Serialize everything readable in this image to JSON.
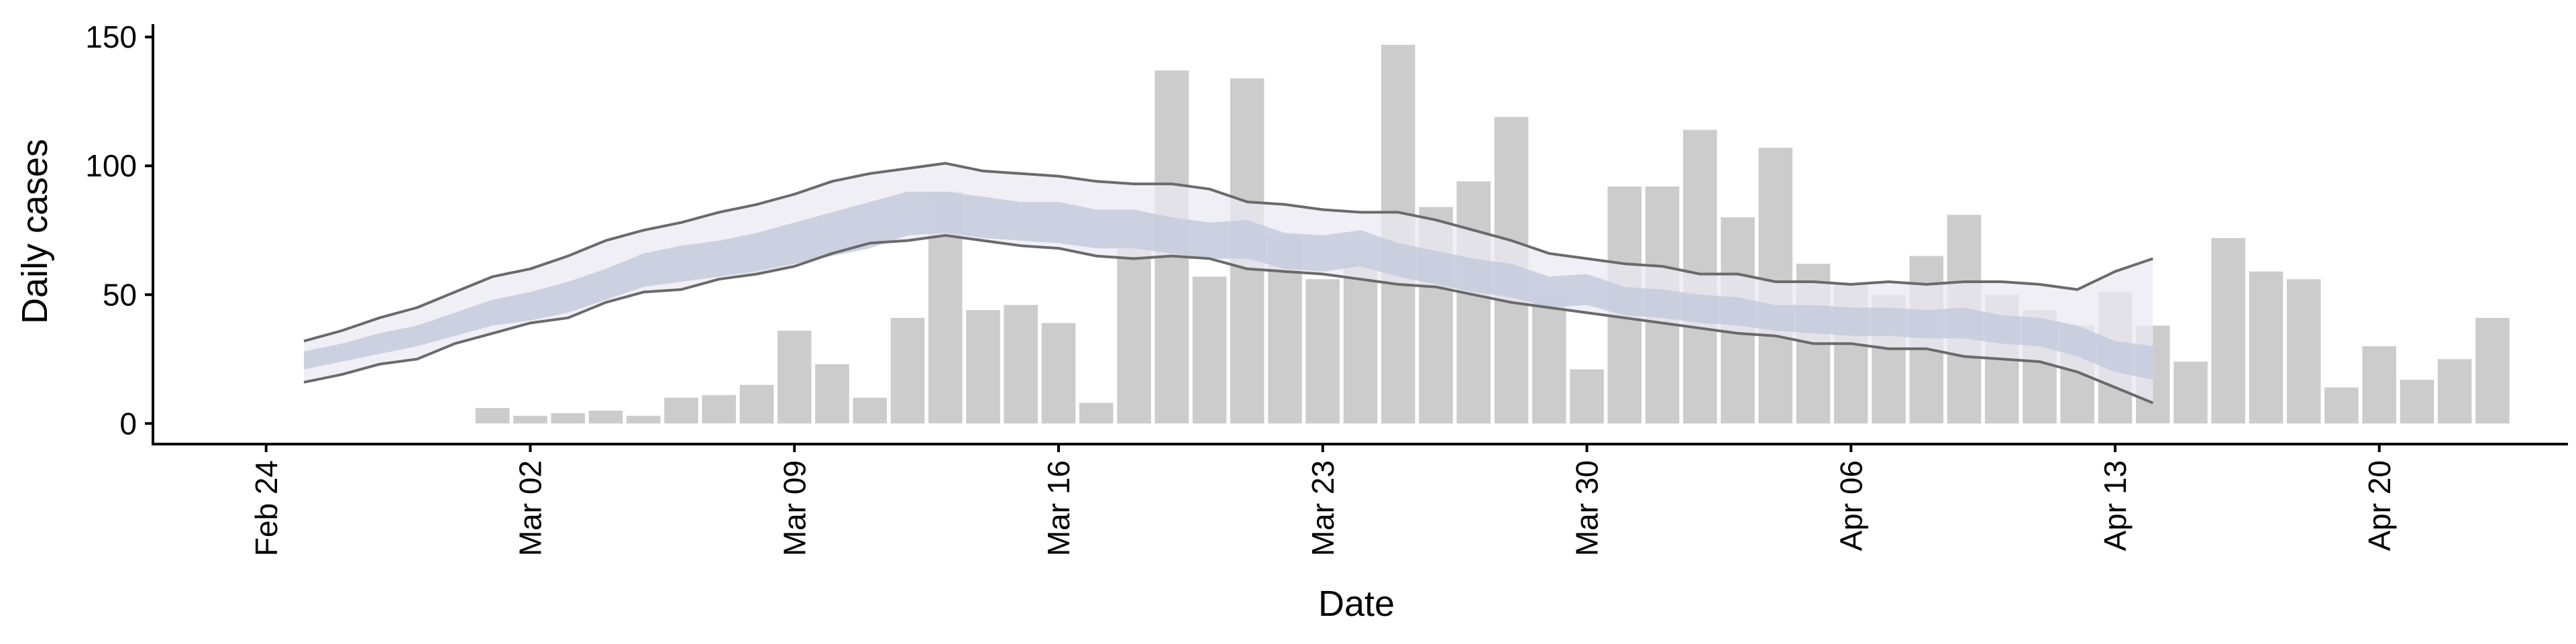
{
  "chart_data": {
    "type": "bar",
    "title": "",
    "xlabel": "Date",
    "ylabel": "Daily cases",
    "ylim": [
      -8,
      155
    ],
    "xlim": [
      "2020-02-21",
      "2020-04-25"
    ],
    "grid": false,
    "y_ticks": [
      0,
      50,
      100,
      150
    ],
    "x_ticks": [
      {
        "date": "2020-02-24",
        "label": "Feb 24"
      },
      {
        "date": "2020-03-02",
        "label": "Mar 02"
      },
      {
        "date": "2020-03-09",
        "label": "Mar 09"
      },
      {
        "date": "2020-03-16",
        "label": "Mar 16"
      },
      {
        "date": "2020-03-23",
        "label": "Mar 23"
      },
      {
        "date": "2020-03-30",
        "label": "Mar 30"
      },
      {
        "date": "2020-04-06",
        "label": "Apr 06"
      },
      {
        "date": "2020-04-13",
        "label": "Apr 13"
      },
      {
        "date": "2020-04-20",
        "label": "Apr 20"
      }
    ],
    "colors": {
      "bars": "#cccccc",
      "band_outer": "#e9eaf1",
      "band_inner": "#c5cbdd",
      "bound_lines": "#6a6a6a"
    },
    "bars": {
      "dates": [
        "2020-03-01",
        "2020-03-02",
        "2020-03-03",
        "2020-03-04",
        "2020-03-05",
        "2020-03-06",
        "2020-03-07",
        "2020-03-08",
        "2020-03-09",
        "2020-03-10",
        "2020-03-11",
        "2020-03-12",
        "2020-03-13",
        "2020-03-14",
        "2020-03-15",
        "2020-03-16",
        "2020-03-17",
        "2020-03-18",
        "2020-03-19",
        "2020-03-20",
        "2020-03-21",
        "2020-03-22",
        "2020-03-23",
        "2020-03-24",
        "2020-03-25",
        "2020-03-26",
        "2020-03-27",
        "2020-03-28",
        "2020-03-29",
        "2020-03-30",
        "2020-03-31",
        "2020-04-01",
        "2020-04-02",
        "2020-04-03",
        "2020-04-04",
        "2020-04-05",
        "2020-04-06",
        "2020-04-07",
        "2020-04-08",
        "2020-04-09",
        "2020-04-10",
        "2020-04-11",
        "2020-04-12",
        "2020-04-13",
        "2020-04-14",
        "2020-04-15",
        "2020-04-16",
        "2020-04-17",
        "2020-04-18",
        "2020-04-19",
        "2020-04-20",
        "2020-04-21",
        "2020-04-22",
        "2020-04-23"
      ],
      "values": [
        6,
        3,
        4,
        5,
        3,
        10,
        11,
        15,
        36,
        23,
        10,
        41,
        90,
        44,
        46,
        39,
        8,
        68,
        137,
        57,
        134,
        73,
        56,
        62,
        147,
        84,
        94,
        119,
        50,
        21,
        92,
        92,
        114,
        80,
        107,
        62,
        54,
        50,
        65,
        81,
        50,
        44,
        38,
        51,
        38,
        24,
        72,
        59,
        56,
        14,
        30,
        17,
        25,
        41
      ]
    },
    "series": [
      {
        "role": "upper_bound",
        "dates": [
          "2020-02-25",
          "2020-02-26",
          "2020-02-27",
          "2020-02-28",
          "2020-02-29",
          "2020-03-01",
          "2020-03-02",
          "2020-03-03",
          "2020-03-04",
          "2020-03-05",
          "2020-03-06",
          "2020-03-07",
          "2020-03-08",
          "2020-03-09",
          "2020-03-10",
          "2020-03-11",
          "2020-03-12",
          "2020-03-13",
          "2020-03-14",
          "2020-03-15",
          "2020-03-16",
          "2020-03-17",
          "2020-03-18",
          "2020-03-19",
          "2020-03-20",
          "2020-03-21",
          "2020-03-22",
          "2020-03-23",
          "2020-03-24",
          "2020-03-25",
          "2020-03-26",
          "2020-03-27",
          "2020-03-28",
          "2020-03-29",
          "2020-03-30",
          "2020-03-31",
          "2020-04-01",
          "2020-04-02",
          "2020-04-03",
          "2020-04-04",
          "2020-04-05",
          "2020-04-06",
          "2020-04-07",
          "2020-04-08",
          "2020-04-09",
          "2020-04-10",
          "2020-04-11",
          "2020-04-12",
          "2020-04-13",
          "2020-04-14"
        ],
        "values": [
          32,
          36,
          41,
          45,
          51,
          57,
          60,
          65,
          71,
          75,
          78,
          82,
          85,
          89,
          94,
          97,
          99,
          101,
          98,
          97,
          96,
          94,
          93,
          93,
          91,
          86,
          85,
          83,
          82,
          82,
          79,
          75,
          71,
          66,
          64,
          62,
          61,
          58,
          58,
          55,
          55,
          54,
          55,
          54,
          55,
          55,
          54,
          52,
          59,
          64
        ]
      },
      {
        "role": "lower_bound",
        "dates": [
          "2020-02-25",
          "2020-02-26",
          "2020-02-27",
          "2020-02-28",
          "2020-02-29",
          "2020-03-01",
          "2020-03-02",
          "2020-03-03",
          "2020-03-04",
          "2020-03-05",
          "2020-03-06",
          "2020-03-07",
          "2020-03-08",
          "2020-03-09",
          "2020-03-10",
          "2020-03-11",
          "2020-03-12",
          "2020-03-13",
          "2020-03-14",
          "2020-03-15",
          "2020-03-16",
          "2020-03-17",
          "2020-03-18",
          "2020-03-19",
          "2020-03-20",
          "2020-03-21",
          "2020-03-22",
          "2020-03-23",
          "2020-03-24",
          "2020-03-25",
          "2020-03-26",
          "2020-03-27",
          "2020-03-28",
          "2020-03-29",
          "2020-03-30",
          "2020-03-31",
          "2020-04-01",
          "2020-04-02",
          "2020-04-03",
          "2020-04-04",
          "2020-04-05",
          "2020-04-06",
          "2020-04-07",
          "2020-04-08",
          "2020-04-09",
          "2020-04-10",
          "2020-04-11",
          "2020-04-12",
          "2020-04-13",
          "2020-04-14"
        ],
        "values": [
          16,
          19,
          23,
          25,
          31,
          35,
          39,
          41,
          47,
          51,
          52,
          56,
          58,
          61,
          66,
          70,
          71,
          73,
          71,
          69,
          68,
          65,
          64,
          65,
          64,
          60,
          59,
          58,
          56,
          54,
          53,
          50,
          47,
          45,
          43,
          41,
          39,
          37,
          35,
          34,
          31,
          31,
          29,
          29,
          26,
          25,
          24,
          20,
          14,
          8
        ]
      },
      {
        "role": "median_band",
        "dates": [
          "2020-02-25",
          "2020-02-26",
          "2020-02-27",
          "2020-02-28",
          "2020-02-29",
          "2020-03-01",
          "2020-03-02",
          "2020-03-03",
          "2020-03-04",
          "2020-03-05",
          "2020-03-06",
          "2020-03-07",
          "2020-03-08",
          "2020-03-09",
          "2020-03-10",
          "2020-03-11",
          "2020-03-12",
          "2020-03-13",
          "2020-03-14",
          "2020-03-15",
          "2020-03-16",
          "2020-03-17",
          "2020-03-18",
          "2020-03-19",
          "2020-03-20",
          "2020-03-21",
          "2020-03-22",
          "2020-03-23",
          "2020-03-24",
          "2020-03-25",
          "2020-03-26",
          "2020-03-27",
          "2020-03-28",
          "2020-03-29",
          "2020-03-30",
          "2020-03-31",
          "2020-04-01",
          "2020-04-02",
          "2020-04-03",
          "2020-04-04",
          "2020-04-05",
          "2020-04-06",
          "2020-04-07",
          "2020-04-08",
          "2020-04-09",
          "2020-04-10",
          "2020-04-11",
          "2020-04-12",
          "2020-04-13",
          "2020-04-14"
        ],
        "upper": [
          28,
          31,
          35,
          38,
          43,
          48,
          51,
          55,
          60,
          66,
          69,
          71,
          74,
          78,
          82,
          86,
          90,
          90,
          88,
          86,
          86,
          83,
          83,
          80,
          78,
          79,
          74,
          73,
          75,
          70,
          67,
          64,
          62,
          57,
          58,
          53,
          52,
          50,
          49,
          46,
          46,
          45,
          45,
          44,
          45,
          42,
          41,
          38,
          32,
          30
        ],
        "lower": [
          21,
          24,
          27,
          30,
          34,
          38,
          40,
          43,
          48,
          53,
          55,
          57,
          59,
          62,
          65,
          68,
          73,
          74,
          72,
          71,
          70,
          68,
          68,
          66,
          64,
          64,
          60,
          59,
          61,
          57,
          54,
          51,
          49,
          45,
          46,
          42,
          41,
          39,
          38,
          36,
          35,
          34,
          34,
          33,
          33,
          31,
          30,
          26,
          20,
          17
        ]
      }
    ]
  }
}
